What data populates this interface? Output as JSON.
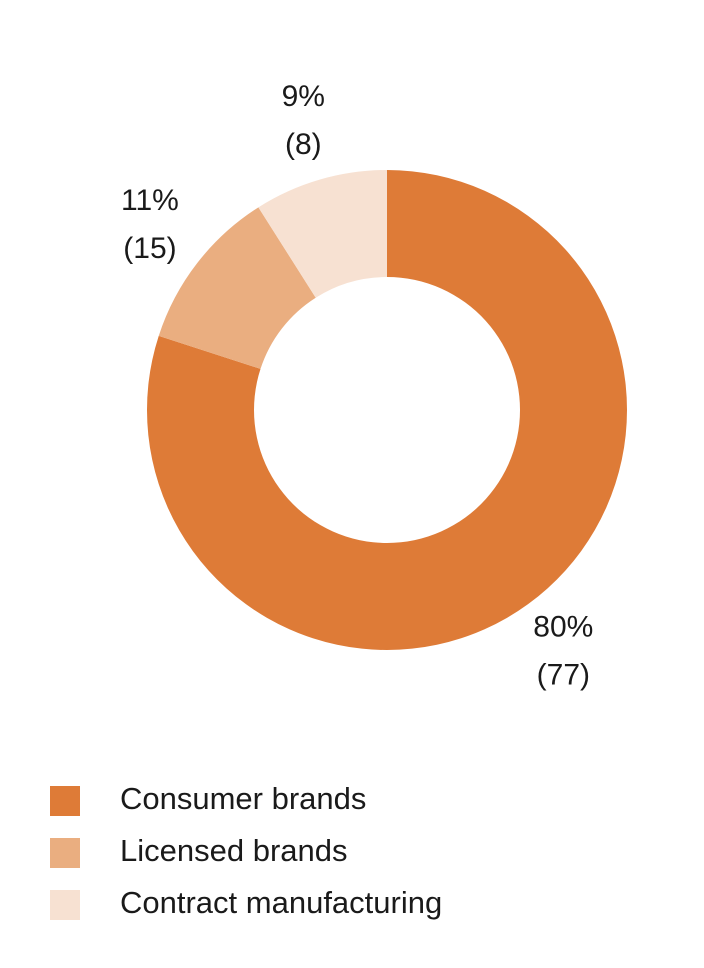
{
  "chart_data": {
    "type": "donut",
    "categories": [
      "Consumer brands",
      "Licensed brands",
      "Contract manufacturing"
    ],
    "values": [
      80,
      11,
      9
    ],
    "value_labels": [
      "80%",
      "11%",
      "9%"
    ],
    "colors": [
      "#de7b37",
      "#eaae80",
      "#f7e1d2"
    ],
    "comparison": {
      "values": [
        77,
        15,
        8
      ],
      "value_labels": [
        "(77)",
        "(15)",
        "(8)"
      ]
    }
  }
}
